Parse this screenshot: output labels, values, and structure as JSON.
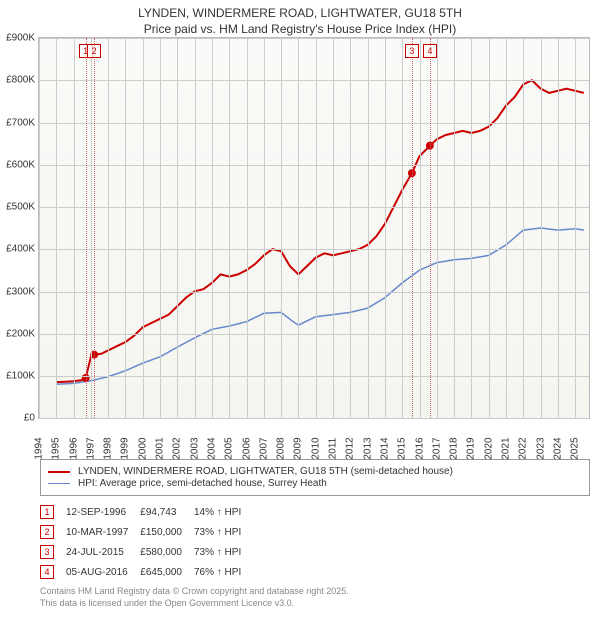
{
  "title_line1": "LYNDEN, WINDERMERE ROAD, LIGHTWATER, GU18 5TH",
  "title_line2": "Price paid vs. HM Land Registry's House Price Index (HPI)",
  "chart": {
    "type": "line",
    "background_gradient": [
      "#fafaf8",
      "#f5f5f0"
    ],
    "grid_color": "#cccccc",
    "x_min": 1994,
    "x_max": 2025.8,
    "y_min": 0,
    "y_max": 900000,
    "y_tick_step": 100000,
    "y_tick_labels": [
      "£0",
      "£100K",
      "£200K",
      "£300K",
      "£400K",
      "£500K",
      "£600K",
      "£700K",
      "£800K",
      "£900K"
    ],
    "x_ticks": [
      1994,
      1995,
      1996,
      1997,
      1998,
      1999,
      2000,
      2001,
      2002,
      2003,
      2004,
      2005,
      2006,
      2007,
      2008,
      2009,
      2010,
      2011,
      2012,
      2013,
      2014,
      2015,
      2016,
      2017,
      2018,
      2019,
      2020,
      2021,
      2022,
      2023,
      2024,
      2025
    ],
    "label_fontsize": 10,
    "series": [
      {
        "name": "price_paid",
        "label": "LYNDEN, WINDERMERE ROAD, LIGHTWATER, GU18 5TH (semi-detached house)",
        "color": "#cc0000",
        "line_width": 2,
        "points": [
          [
            1995.0,
            85000
          ],
          [
            1995.5,
            86000
          ],
          [
            1996.0,
            87000
          ],
          [
            1996.5,
            90000
          ],
          [
            1996.7,
            94743
          ],
          [
            1997.0,
            145000
          ],
          [
            1997.2,
            150000
          ],
          [
            1997.6,
            152000
          ],
          [
            1998.0,
            160000
          ],
          [
            1998.5,
            170000
          ],
          [
            1999.0,
            180000
          ],
          [
            1999.5,
            195000
          ],
          [
            2000.0,
            215000
          ],
          [
            2000.5,
            225000
          ],
          [
            2001.0,
            235000
          ],
          [
            2001.5,
            245000
          ],
          [
            2002.0,
            265000
          ],
          [
            2002.5,
            285000
          ],
          [
            2003.0,
            300000
          ],
          [
            2003.5,
            305000
          ],
          [
            2004.0,
            320000
          ],
          [
            2004.5,
            340000
          ],
          [
            2005.0,
            335000
          ],
          [
            2005.5,
            340000
          ],
          [
            2006.0,
            350000
          ],
          [
            2006.5,
            365000
          ],
          [
            2007.0,
            385000
          ],
          [
            2007.5,
            400000
          ],
          [
            2008.0,
            395000
          ],
          [
            2008.5,
            360000
          ],
          [
            2009.0,
            340000
          ],
          [
            2009.5,
            360000
          ],
          [
            2010.0,
            380000
          ],
          [
            2010.5,
            390000
          ],
          [
            2011.0,
            385000
          ],
          [
            2011.5,
            390000
          ],
          [
            2012.0,
            395000
          ],
          [
            2012.5,
            400000
          ],
          [
            2013.0,
            410000
          ],
          [
            2013.5,
            430000
          ],
          [
            2014.0,
            460000
          ],
          [
            2014.5,
            500000
          ],
          [
            2015.0,
            540000
          ],
          [
            2015.56,
            580000
          ],
          [
            2016.0,
            620000
          ],
          [
            2016.6,
            645000
          ],
          [
            2017.0,
            660000
          ],
          [
            2017.5,
            670000
          ],
          [
            2018.0,
            675000
          ],
          [
            2018.5,
            680000
          ],
          [
            2019.0,
            675000
          ],
          [
            2019.5,
            680000
          ],
          [
            2020.0,
            690000
          ],
          [
            2020.5,
            710000
          ],
          [
            2021.0,
            740000
          ],
          [
            2021.5,
            760000
          ],
          [
            2022.0,
            790000
          ],
          [
            2022.5,
            800000
          ],
          [
            2023.0,
            780000
          ],
          [
            2023.5,
            770000
          ],
          [
            2024.0,
            775000
          ],
          [
            2024.5,
            780000
          ],
          [
            2025.0,
            775000
          ],
          [
            2025.5,
            770000
          ]
        ]
      },
      {
        "name": "hpi",
        "label": "HPI: Average price, semi-detached house, Surrey Heath",
        "color": "#6688cc",
        "line_width": 1.5,
        "points": [
          [
            1995.0,
            80000
          ],
          [
            1996.0,
            82000
          ],
          [
            1997.0,
            88000
          ],
          [
            1998.0,
            98000
          ],
          [
            1999.0,
            112000
          ],
          [
            2000.0,
            130000
          ],
          [
            2001.0,
            145000
          ],
          [
            2002.0,
            168000
          ],
          [
            2003.0,
            190000
          ],
          [
            2004.0,
            210000
          ],
          [
            2005.0,
            218000
          ],
          [
            2006.0,
            228000
          ],
          [
            2007.0,
            248000
          ],
          [
            2008.0,
            250000
          ],
          [
            2008.7,
            228000
          ],
          [
            2009.0,
            220000
          ],
          [
            2010.0,
            240000
          ],
          [
            2011.0,
            245000
          ],
          [
            2012.0,
            250000
          ],
          [
            2013.0,
            260000
          ],
          [
            2014.0,
            285000
          ],
          [
            2015.0,
            320000
          ],
          [
            2016.0,
            350000
          ],
          [
            2017.0,
            368000
          ],
          [
            2018.0,
            375000
          ],
          [
            2019.0,
            378000
          ],
          [
            2020.0,
            385000
          ],
          [
            2021.0,
            410000
          ],
          [
            2022.0,
            445000
          ],
          [
            2023.0,
            450000
          ],
          [
            2024.0,
            445000
          ],
          [
            2025.0,
            448000
          ],
          [
            2025.5,
            445000
          ]
        ]
      }
    ],
    "price_markers": [
      {
        "n": "1",
        "x": 1996.7,
        "y": 94743
      },
      {
        "n": "2",
        "x": 1997.19,
        "y": 150000
      },
      {
        "n": "3",
        "x": 2015.56,
        "y": 580000
      },
      {
        "n": "4",
        "x": 2016.6,
        "y": 645000
      }
    ]
  },
  "legend": {
    "items": [
      {
        "color": "#cc0000",
        "width": 2,
        "bind": "chart.series.0.label"
      },
      {
        "color": "#6688cc",
        "width": 1.5,
        "bind": "chart.series.1.label"
      }
    ]
  },
  "sales": [
    {
      "n": "1",
      "date": "12-SEP-1996",
      "price": "£94,743",
      "change": "14% ↑ HPI"
    },
    {
      "n": "2",
      "date": "10-MAR-1997",
      "price": "£150,000",
      "change": "73% ↑ HPI"
    },
    {
      "n": "3",
      "date": "24-JUL-2015",
      "price": "£580,000",
      "change": "73% ↑ HPI"
    },
    {
      "n": "4",
      "date": "05-AUG-2016",
      "price": "£645,000",
      "change": "76% ↑ HPI"
    }
  ],
  "footer_line1": "Contains HM Land Registry data © Crown copyright and database right 2025.",
  "footer_line2": "This data is licensed under the Open Government Licence v3.0."
}
